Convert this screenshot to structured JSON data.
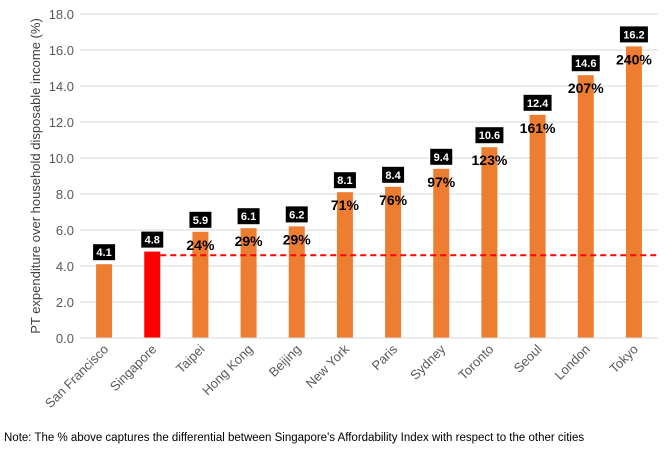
{
  "chart_data": {
    "type": "bar",
    "categories": [
      "San Francisco",
      "Singapore",
      "Taipei",
      "Hong Kong",
      "Beijing",
      "New York",
      "Paris",
      "Sydney",
      "Toronto",
      "Seoul",
      "London",
      "Tokyo"
    ],
    "values": [
      4.1,
      4.8,
      5.9,
      6.1,
      6.2,
      8.1,
      8.4,
      9.4,
      10.6,
      12.4,
      14.6,
      16.2
    ],
    "value_labels": [
      "4.1",
      "4.8",
      "5.9",
      "6.1",
      "6.2",
      "8.1",
      "8.4",
      "9.4",
      "10.6",
      "12.4",
      "14.6",
      "16.2"
    ],
    "differentials": [
      "",
      "",
      "24%",
      "29%",
      "29%",
      "71%",
      "76%",
      "97%",
      "123%",
      "161%",
      "207%",
      "240%"
    ],
    "highlight_category": "Singapore",
    "reference_line": 4.6,
    "ylabel": "PT expenditure over household disposable income (%)",
    "xlabel": "",
    "ylim": [
      0,
      18
    ],
    "yticks": [
      "0.0",
      "2.0",
      "4.0",
      "6.0",
      "8.0",
      "10.0",
      "12.0",
      "14.0",
      "16.0",
      "18.0"
    ],
    "grid": true,
    "colors": {
      "bar": "#ED7D31",
      "highlight": "#FF0000",
      "reference": "#FF0000",
      "label_box": "#000000"
    }
  },
  "note": "Note: The % above captures the differential between Singapore's Affordability Index with respect to the other cities"
}
